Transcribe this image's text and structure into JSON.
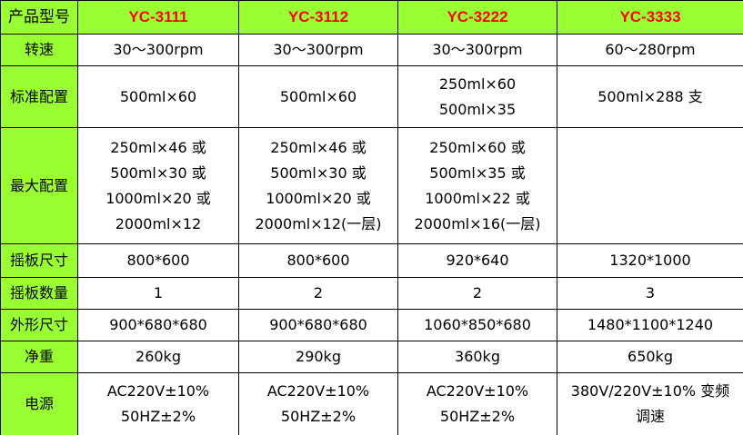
{
  "table": {
    "header": [
      "产品型号",
      "YC-3111",
      "YC-3112",
      "YC-3222",
      "YC-3333"
    ],
    "rows": [
      {
        "label": "转速",
        "cells": [
          [
            "30～300rpm"
          ],
          [
            "30～300rpm"
          ],
          [
            "30～300rpm"
          ],
          [
            "60～280rpm"
          ]
        ]
      },
      {
        "label": "标准配置",
        "cells": [
          [
            "500ml×60"
          ],
          [
            "500ml×60"
          ],
          [
            "250ml×60",
            "500ml×35"
          ],
          [
            "500ml×288 支"
          ]
        ]
      },
      {
        "label": "最大配置",
        "cells": [
          [
            "250ml×46 或",
            "500ml×30 或",
            "1000ml×20 或",
            "2000ml×12"
          ],
          [
            "250ml×46 或",
            "500ml×30 或",
            "1000ml×20 或",
            "2000ml×12(一层)"
          ],
          [
            "250ml×60 或",
            "500ml×35 或",
            "1000ml×22 或",
            "2000ml×16(一层)"
          ],
          []
        ]
      },
      {
        "label": "摇板尺寸",
        "cells": [
          [
            "800*600"
          ],
          [
            "800*600"
          ],
          [
            "920*640"
          ],
          [
            "1320*1000"
          ]
        ]
      },
      {
        "label": "摇板数量",
        "cells": [
          [
            "1"
          ],
          [
            "2"
          ],
          [
            "2"
          ],
          [
            "3"
          ]
        ]
      },
      {
        "label": "外形尺寸",
        "cells": [
          [
            "900*680*680"
          ],
          [
            "900*680*680"
          ],
          [
            "1060*850*680"
          ],
          [
            "1480*1100*1240"
          ]
        ]
      },
      {
        "label": "净重",
        "cells": [
          [
            "260kg"
          ],
          [
            "290kg"
          ],
          [
            "360kg"
          ],
          [
            "650kg"
          ]
        ]
      },
      {
        "label": "电源",
        "cells": [
          [
            "AC220V±10%",
            "50HZ±2%"
          ],
          [
            "AC220V±10%",
            "50HZ±2%"
          ],
          [
            "AC220V±10%",
            "50HZ±2%"
          ],
          [
            "380V/220V±10%  变频",
            "调速"
          ]
        ]
      }
    ]
  }
}
